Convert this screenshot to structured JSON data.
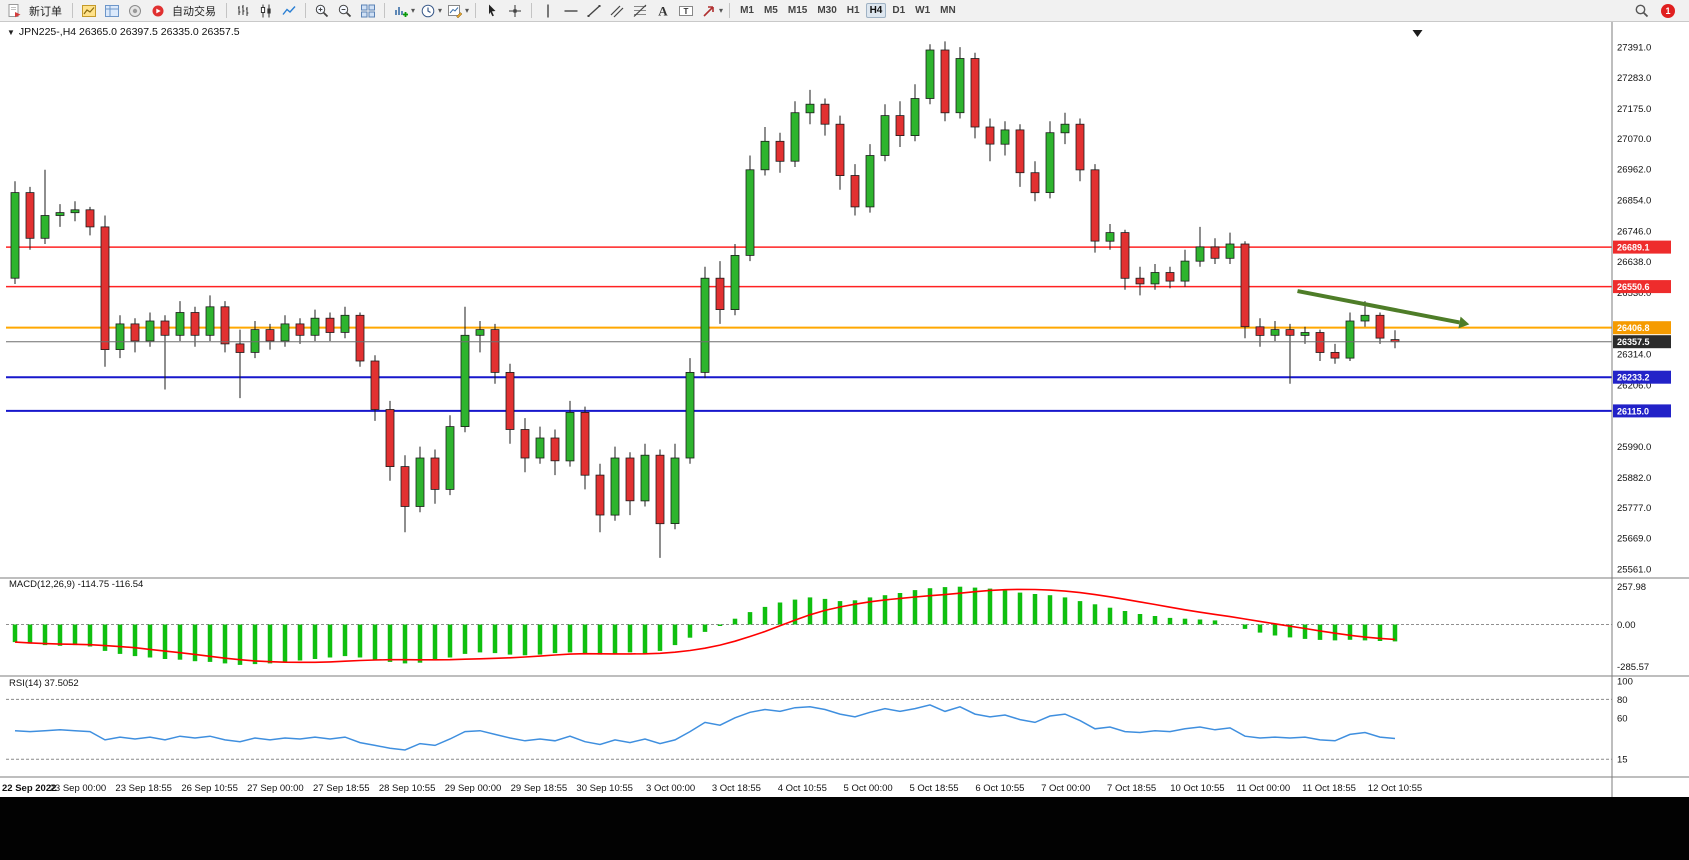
{
  "toolbar": {
    "new_order_label": "新订单",
    "auto_trading_label": "自动交易",
    "timeframes": [
      "M1",
      "M5",
      "M15",
      "M30",
      "H1",
      "H4",
      "D1",
      "W1",
      "MN"
    ],
    "active_timeframe": "H4",
    "notification_count": "1"
  },
  "chart_data": {
    "type": "candlestick",
    "symbol_title": "JPN225-,H4 26365.0 26397.5 26335.0 26357.5",
    "ohlc": {
      "open": 26365.0,
      "high": 26397.5,
      "low": 26335.0,
      "close": 26357.5
    },
    "price_axis": {
      "min": 25540,
      "max": 27450,
      "ticks": [
        "27391.0",
        "27283.0",
        "27175.0",
        "27070.0",
        "26962.0",
        "26854.0",
        "26746.0",
        "26638.0",
        "26530.0",
        "26314.0",
        "26206.0",
        "25990.0",
        "25882.0",
        "25777.0",
        "25669.0",
        "25561.0"
      ]
    },
    "hlines": [
      {
        "price": 26689.1,
        "label": "26689.1",
        "color": "#ff2222",
        "width": 1.4,
        "tag": "#ee2c2c",
        "top": false
      },
      {
        "price": 26550.6,
        "label": "26550.6",
        "color": "#ff2222",
        "width": 1.4,
        "tag": "#ee2c2c",
        "top": false
      },
      {
        "price": 26406.8,
        "label": "26406.8",
        "color": "#ffa800",
        "width": 2,
        "tag": "#f59b00",
        "top": false
      },
      {
        "price": 26233.2,
        "label": "26233.2",
        "color": "#1717cc",
        "width": 2,
        "tag": "#2222c8",
        "top": false
      },
      {
        "price": 26115.0,
        "label": "26115.0",
        "color": "#1717cc",
        "width": 2,
        "tag": "#2222c8",
        "top": false
      },
      {
        "price": 26357.5,
        "label": "26357.5",
        "color": "#6e6e6e",
        "width": 1,
        "tag": "#2b2b2b",
        "top": true
      }
    ],
    "arrow": {
      "from_index": 85.5,
      "from_price": 26535,
      "to_index": 96.3,
      "to_price": 26425
    },
    "candles": [
      [
        26580,
        26920,
        26560,
        26880
      ],
      [
        26880,
        26900,
        26680,
        26720
      ],
      [
        26720,
        26960,
        26700,
        26800
      ],
      [
        26800,
        26840,
        26760,
        26810
      ],
      [
        26810,
        26850,
        26780,
        26820
      ],
      [
        26820,
        26830,
        26730,
        26760
      ],
      [
        26760,
        26800,
        26270,
        26330
      ],
      [
        26330,
        26450,
        26300,
        26420
      ],
      [
        26420,
        26440,
        26320,
        26360
      ],
      [
        26360,
        26460,
        26340,
        26430
      ],
      [
        26430,
        26450,
        26190,
        26380
      ],
      [
        26380,
        26500,
        26360,
        26460
      ],
      [
        26460,
        26480,
        26340,
        26380
      ],
      [
        26380,
        26520,
        26360,
        26480
      ],
      [
        26480,
        26500,
        26320,
        26350
      ],
      [
        26350,
        26400,
        26160,
        26320
      ],
      [
        26320,
        26430,
        26300,
        26400
      ],
      [
        26400,
        26420,
        26330,
        26360
      ],
      [
        26360,
        26450,
        26340,
        26420
      ],
      [
        26420,
        26440,
        26350,
        26380
      ],
      [
        26380,
        26470,
        26360,
        26440
      ],
      [
        26440,
        26460,
        26360,
        26390
      ],
      [
        26390,
        26480,
        26370,
        26450
      ],
      [
        26450,
        26460,
        26270,
        26290
      ],
      [
        26290,
        26310,
        26080,
        26120
      ],
      [
        26120,
        26150,
        25870,
        25920
      ],
      [
        25920,
        25960,
        25690,
        25780
      ],
      [
        25780,
        25990,
        25760,
        25950
      ],
      [
        25950,
        25980,
        25790,
        25840
      ],
      [
        25840,
        26100,
        25820,
        26060
      ],
      [
        26060,
        26480,
        26040,
        26380
      ],
      [
        26380,
        26430,
        26320,
        26400
      ],
      [
        26400,
        26420,
        26210,
        26250
      ],
      [
        26250,
        26280,
        26000,
        26050
      ],
      [
        26050,
        26090,
        25900,
        25950
      ],
      [
        25950,
        26060,
        25930,
        26020
      ],
      [
        26020,
        26050,
        25890,
        25940
      ],
      [
        25940,
        26150,
        25920,
        26110
      ],
      [
        26110,
        26130,
        25840,
        25890
      ],
      [
        25890,
        25930,
        25690,
        25750
      ],
      [
        25750,
        25990,
        25730,
        25950
      ],
      [
        25950,
        25970,
        25750,
        25800
      ],
      [
        25800,
        26000,
        25780,
        25960
      ],
      [
        25960,
        25980,
        25600,
        25720
      ],
      [
        25720,
        26000,
        25700,
        25950
      ],
      [
        25950,
        26300,
        25930,
        26250
      ],
      [
        26250,
        26620,
        26230,
        26580
      ],
      [
        26580,
        26640,
        26420,
        26470
      ],
      [
        26470,
        26700,
        26450,
        26660
      ],
      [
        26660,
        27010,
        26640,
        26960
      ],
      [
        26960,
        27110,
        26940,
        27060
      ],
      [
        27060,
        27090,
        26950,
        26990
      ],
      [
        26990,
        27200,
        26970,
        27160
      ],
      [
        27160,
        27240,
        27120,
        27190
      ],
      [
        27190,
        27210,
        27080,
        27120
      ],
      [
        27120,
        27150,
        26890,
        26940
      ],
      [
        26940,
        26980,
        26800,
        26830
      ],
      [
        26830,
        27050,
        26810,
        27010
      ],
      [
        27010,
        27190,
        26990,
        27150
      ],
      [
        27150,
        27200,
        27040,
        27080
      ],
      [
        27080,
        27260,
        27060,
        27210
      ],
      [
        27210,
        27400,
        27190,
        27380
      ],
      [
        27380,
        27410,
        27130,
        27160
      ],
      [
        27160,
        27390,
        27140,
        27350
      ],
      [
        27350,
        27370,
        27070,
        27110
      ],
      [
        27110,
        27140,
        26990,
        27050
      ],
      [
        27050,
        27130,
        27010,
        27100
      ],
      [
        27100,
        27120,
        26900,
        26950
      ],
      [
        26950,
        26990,
        26850,
        26880
      ],
      [
        26880,
        27130,
        26860,
        27090
      ],
      [
        27090,
        27160,
        27050,
        27120
      ],
      [
        27120,
        27140,
        26920,
        26960
      ],
      [
        26960,
        26980,
        26670,
        26710
      ],
      [
        26710,
        26770,
        26680,
        26740
      ],
      [
        26740,
        26750,
        26540,
        26580
      ],
      [
        26580,
        26620,
        26520,
        26560
      ],
      [
        26560,
        26630,
        26540,
        26600
      ],
      [
        26600,
        26620,
        26545,
        26570
      ],
      [
        26570,
        26680,
        26550,
        26640
      ],
      [
        26640,
        26760,
        26620,
        26690
      ],
      [
        26690,
        26720,
        26630,
        26650
      ],
      [
        26650,
        26740,
        26630,
        26700
      ],
      [
        26700,
        26710,
        26370,
        26410
      ],
      [
        26410,
        26440,
        26340,
        26380
      ],
      [
        26380,
        26430,
        26360,
        26400
      ],
      [
        26400,
        26420,
        26210,
        26380
      ],
      [
        26380,
        26410,
        26350,
        26390
      ],
      [
        26390,
        26400,
        26290,
        26320
      ],
      [
        26320,
        26350,
        26280,
        26300
      ],
      [
        26300,
        26460,
        26290,
        26430
      ],
      [
        26430,
        26500,
        26410,
        26450
      ],
      [
        26450,
        26460,
        26350,
        26370
      ],
      [
        26365,
        26397.5,
        26335,
        26357.5
      ]
    ],
    "macd": {
      "title": "MACD(12,26,9) -114.75 -116.54",
      "range": [
        -310,
        290
      ],
      "ticks": [
        "257.98",
        "0.00",
        "-285.57"
      ],
      "values": [
        -120,
        -130,
        -140,
        -145,
        -140,
        -150,
        -180,
        -200,
        -215,
        -225,
        -235,
        -240,
        -250,
        -255,
        -265,
        -275,
        -270,
        -265,
        -255,
        -245,
        -235,
        -225,
        -215,
        -225,
        -240,
        -255,
        -265,
        -260,
        -245,
        -225,
        -200,
        -190,
        -195,
        -205,
        -210,
        -205,
        -195,
        -190,
        -200,
        -205,
        -200,
        -190,
        -200,
        -180,
        -140,
        -90,
        -50,
        -10,
        40,
        85,
        120,
        150,
        170,
        185,
        175,
        160,
        165,
        185,
        200,
        215,
        235,
        248,
        255,
        258,
        252,
        245,
        232,
        218,
        208,
        200,
        185,
        160,
        138,
        115,
        92,
        72,
        58,
        45,
        40,
        34,
        28,
        0,
        -30,
        -55,
        -75,
        -88,
        -98,
        -105,
        -108,
        -104,
        -108,
        -112,
        -114.75
      ]
    },
    "rsi": {
      "title": "RSI(14) 37.5052",
      "range": [
        0,
        100
      ],
      "ticks": [
        "100",
        "80",
        "60",
        "15"
      ],
      "levels": [
        80,
        15
      ],
      "values": [
        46,
        45,
        46,
        47,
        46,
        45,
        36,
        39,
        37,
        39,
        36,
        40,
        38,
        40,
        36,
        34,
        38,
        36,
        38,
        37,
        39,
        37,
        39,
        33,
        30,
        27,
        25,
        32,
        30,
        37,
        45,
        46,
        42,
        38,
        35,
        37,
        35,
        40,
        34,
        31,
        36,
        33,
        37,
        32,
        36,
        45,
        55,
        52,
        60,
        66,
        69,
        67,
        71,
        72,
        69,
        64,
        61,
        66,
        70,
        67,
        70,
        74,
        67,
        72,
        64,
        61,
        63,
        58,
        55,
        62,
        64,
        57,
        48,
        50,
        45,
        44,
        46,
        45,
        48,
        50,
        47,
        49,
        40,
        38,
        39,
        38,
        39,
        36,
        35,
        42,
        44,
        39,
        37.5
      ]
    },
    "x_labels": [
      "22 Sep 2022",
      "23 Sep 00:00",
      "23 Sep 18:55",
      "26 Sep 10:55",
      "27 Sep 00:00",
      "27 Sep 18:55",
      "28 Sep 10:55",
      "29 Sep 00:00",
      "29 Sep 18:55",
      "30 Sep 10:55",
      "3 Oct 00:00",
      "3 Oct 18:55",
      "4 Oct 10:55",
      "5 Oct 00:00",
      "5 Oct 18:55",
      "6 Oct 10:55",
      "7 Oct 00:00",
      "7 Oct 18:55",
      "10 Oct 10:55",
      "11 Oct 00:00",
      "11 Oct 18:55",
      "12 Oct 10:55"
    ],
    "colors": {
      "candle_up": "#2eb42e",
      "candle_down": "#e23131",
      "candle_outline": "#1c1c1c",
      "macd_bar": "#0fbf0f",
      "macd_signal": "#ff0000",
      "rsi_line": "#3f8fdf",
      "arrow": "#4e7d28",
      "axis_text": "#111111"
    }
  }
}
